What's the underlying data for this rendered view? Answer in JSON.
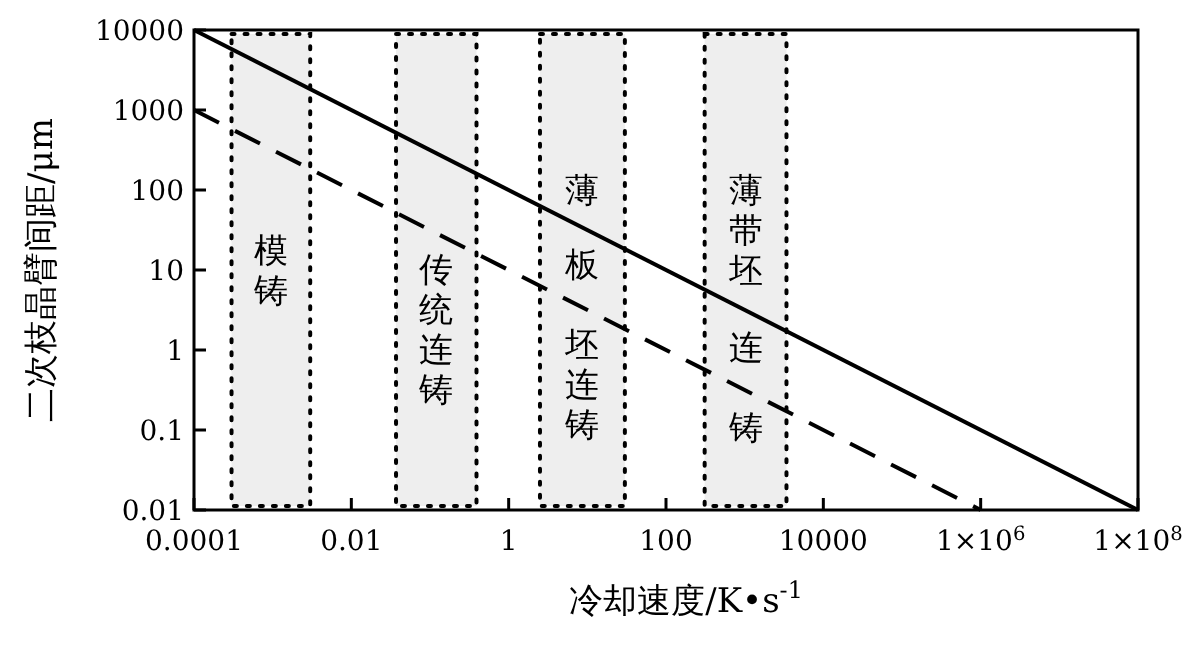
{
  "chart_data": {
    "type": "line",
    "xlabel": "冷却速度/K•s$^{-1}$",
    "ylabel": "二次枝晶臂间距/μm",
    "log": "xy",
    "xlim": [
      0.0001,
      100000000
    ],
    "ylim": [
      0.01,
      10000
    ],
    "xticks": [
      0.0001,
      0.01,
      1,
      100,
      10000,
      {
        "value": 1000000,
        "label": "1×10$^{6}$"
      },
      {
        "value": 100000000,
        "label": "1×10$^{8}$"
      }
    ],
    "yticks": [
      0.01,
      0.1,
      1,
      10,
      100,
      1000,
      10000
    ],
    "series": [
      {
        "color": "#000000",
        "line_style": "solid",
        "x": [
          0.0001,
          100000000
        ],
        "values": [
          10000,
          0.01
        ]
      },
      {
        "color": "#000000",
        "line_style": "dashed",
        "x": [
          0.0001,
          1000000
        ],
        "values": [
          1000,
          0.01
        ]
      }
    ],
    "bands": [
      {
        "axis": "x",
        "from": 0.0003,
        "to": 0.003,
        "label": "模铸",
        "color": "#eeeeee"
      },
      {
        "axis": "x",
        "from": 0.037,
        "to": 0.39,
        "label": "传统连铸",
        "color": "#eeeeee"
      },
      {
        "axis": "x",
        "from": 2.5,
        "to": 30,
        "label": "薄板坯连铸",
        "color": "#eeeeee"
      },
      {
        "axis": "x",
        "from": 310,
        "to": 3400,
        "label": "薄带坯连铸",
        "color": "#eeeeee"
      }
    ]
  }
}
